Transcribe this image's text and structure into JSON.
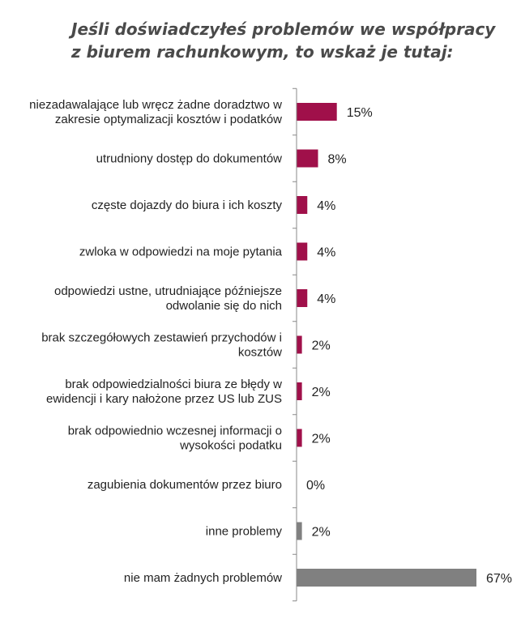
{
  "chart_data": {
    "type": "bar",
    "orientation": "horizontal",
    "title": [
      "Jeśli doświadczyłeś problemów we współpracy",
      "z biurem rachunkowym, to wskaż je tutaj:"
    ],
    "categories": [
      [
        "niezadawalające lub wręcz żadne doradztwo w",
        "zakresie optymalizacji kosztów i podatków"
      ],
      [
        "utrudniony dostęp do dokumentów"
      ],
      [
        "częste dojazdy do biura i ich koszty"
      ],
      [
        "zwloka w odpowiedzi na moje pytania"
      ],
      [
        "odpowiedzi ustne, utrudniające późniejsze",
        "odwolanie się do nich"
      ],
      [
        "brak szczegółowych zestawień przychodów i",
        "kosztów"
      ],
      [
        "brak odpowiedzialności biura ze błędy w",
        "ewidencji i kary nałożone przez US lub ZUS"
      ],
      [
        "brak odpowiednio wczesnej informacji o",
        "wysokości podatku"
      ],
      [
        "zagubienia dokumentów przez biuro"
      ],
      [
        "inne problemy"
      ],
      [
        "nie mam żadnych problemów"
      ]
    ],
    "values": [
      15,
      8,
      4,
      4,
      4,
      2,
      2,
      2,
      0,
      2,
      67
    ],
    "value_labels": [
      "15%",
      "8%",
      "4%",
      "4%",
      "4%",
      "2%",
      "2%",
      "2%",
      "0%",
      "2%",
      "67%"
    ],
    "bar_colors": [
      "#a0104a",
      "#a0104a",
      "#a0104a",
      "#a0104a",
      "#a0104a",
      "#a0104a",
      "#a0104a",
      "#a0104a",
      "#a0104a",
      "#808080",
      "#808080"
    ],
    "xlim": [
      0,
      67
    ],
    "grid": false,
    "axis_color": "#888888"
  }
}
